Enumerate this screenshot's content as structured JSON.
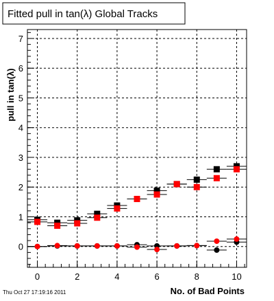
{
  "chart_data": {
    "type": "scatter",
    "title": "Fitted pull in tan(λ)  Global Tracks",
    "xlabel": "No. of Bad Points",
    "ylabel": "pull in tan(λ)",
    "xlim": [
      -0.5,
      10.5
    ],
    "ylim": [
      -0.7,
      7.3
    ],
    "grid": true,
    "x_ticks": [
      0,
      2,
      4,
      6,
      8,
      10
    ],
    "x_tick_labels": [
      "0",
      "2",
      "4",
      "6",
      "8",
      "10"
    ],
    "y_ticks": [
      0,
      1,
      2,
      3,
      4,
      5,
      6,
      7
    ],
    "y_tick_labels": [
      "0",
      "1",
      "2",
      "3",
      "4",
      "5",
      "6",
      "7"
    ],
    "x": [
      0,
      1,
      2,
      3,
      4,
      5,
      6,
      7,
      8,
      9,
      10
    ],
    "series": [
      {
        "marker": "square",
        "color": "#000000",
        "values": [
          0.9,
          0.8,
          0.88,
          1.1,
          1.38,
          1.6,
          1.88,
          2.1,
          2.25,
          2.6,
          2.7
        ],
        "x_err": 0.5,
        "y_err": [
          0.05,
          0.05,
          0.05,
          0.05,
          0.05,
          0.05,
          0.05,
          0.05,
          0.05,
          0.05,
          0.05
        ]
      },
      {
        "marker": "square",
        "color": "#ff0000",
        "values": [
          0.83,
          0.7,
          0.78,
          0.97,
          1.28,
          1.6,
          1.75,
          2.1,
          2.0,
          2.3,
          2.6
        ],
        "x_err": 0.5,
        "y_err": [
          0.05,
          0.05,
          0.05,
          0.05,
          0.05,
          0.05,
          0.05,
          0.05,
          0.05,
          0.05,
          0.05
        ]
      },
      {
        "marker": "circle",
        "color": "#000000",
        "values": [
          0.0,
          0.02,
          0.02,
          0.02,
          0.02,
          0.06,
          0.02,
          0.02,
          0.03,
          -0.12,
          0.15
        ],
        "x_err": 0.5,
        "y_err": [
          0.03,
          0.03,
          0.03,
          0.03,
          0.03,
          0.03,
          0.03,
          0.03,
          0.03,
          0.03,
          0.03
        ]
      },
      {
        "marker": "circle",
        "color": "#ff0000",
        "values": [
          0.0,
          0.03,
          0.02,
          0.02,
          0.02,
          -0.02,
          -0.1,
          0.02,
          0.03,
          0.18,
          0.25
        ],
        "x_err": 0.5,
        "y_err": [
          0.03,
          0.03,
          0.03,
          0.03,
          0.03,
          0.03,
          0.03,
          0.03,
          0.03,
          0.03,
          0.03
        ]
      }
    ],
    "timestamp": "Thu Oct 27 17:19:16 2011"
  }
}
